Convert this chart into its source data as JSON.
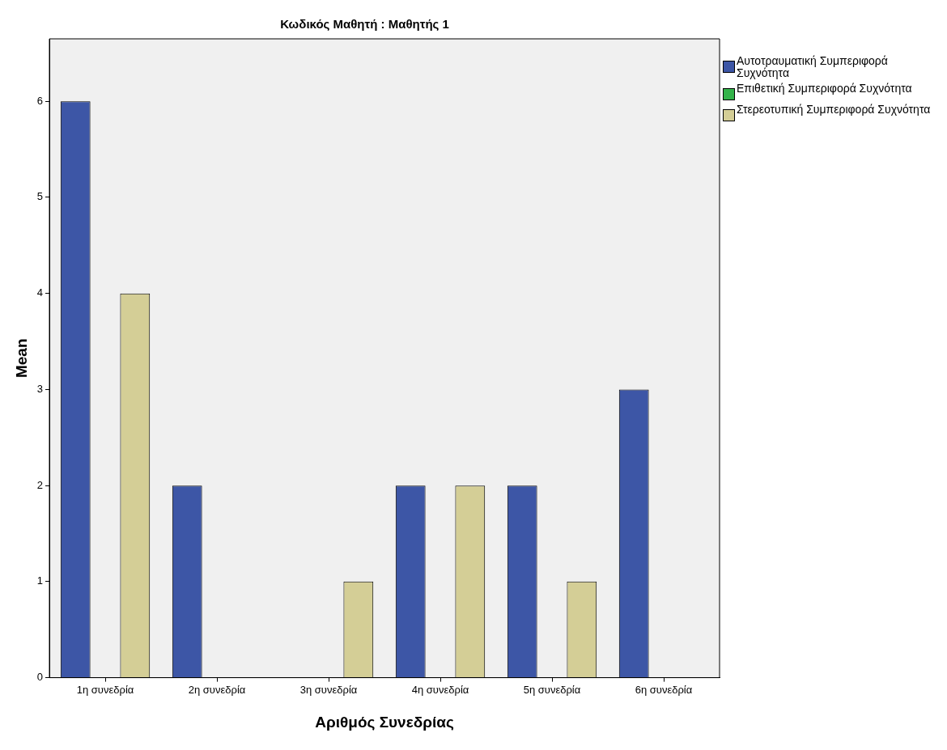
{
  "chart_data": {
    "type": "bar",
    "title": "Κωδικός Μαθητή : Μαθητής 1",
    "xlabel": "Αριθμός Συνεδρίας",
    "ylabel": "Mean",
    "categories": [
      "1η συνεδρία",
      "2η συνεδρία",
      "3η συνεδρία",
      "4η συνεδρία",
      "5η συνεδρία",
      "6η συνεδρία"
    ],
    "series": [
      {
        "name": "Αυτοτραυματική Συμπεριφορά Συχνότητα",
        "color": "#3d56a6",
        "values": [
          6,
          2,
          0,
          2,
          2,
          3
        ]
      },
      {
        "name": "Επιθετική Συμπεριφορά Συχνότητα",
        "color": "#33b34a",
        "values": [
          0,
          0,
          0,
          0,
          0,
          0
        ]
      },
      {
        "name": "Στερεοτυπική Συμπεριφορά Συχνότητα",
        "color": "#d4ce96",
        "values": [
          4,
          0,
          1,
          2,
          1,
          0
        ]
      }
    ],
    "ylim": [
      0,
      6.65
    ],
    "yticks": [
      0,
      1,
      2,
      3,
      4,
      5,
      6
    ],
    "grid": false,
    "legend": "top right"
  }
}
